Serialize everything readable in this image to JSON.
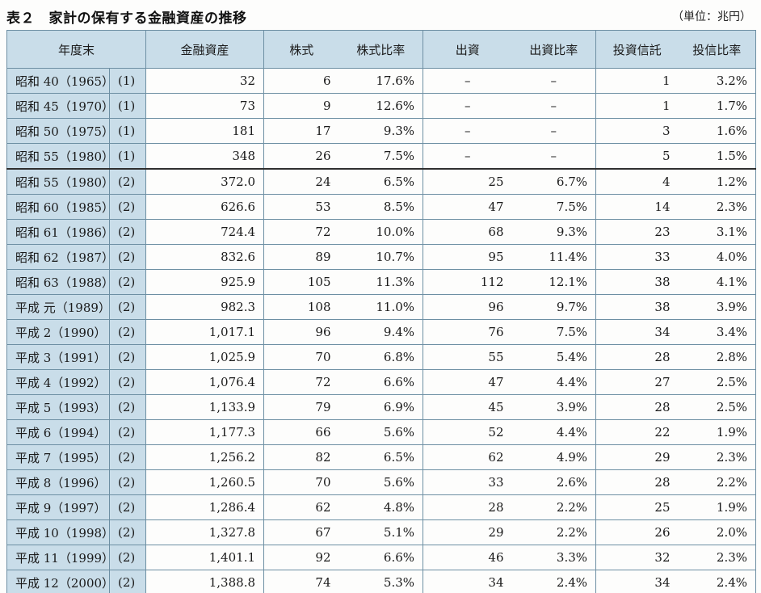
{
  "title": "表２　家計の保有する金融資産の推移",
  "unit": "（単位：兆円）",
  "headers": {
    "year": "年度末",
    "assets": "金融資産",
    "stock": "株式",
    "stock_ratio": "株式比率",
    "investment": "出資",
    "investment_ratio": "出資比率",
    "trust": "投資信託",
    "trust_ratio": "投信比率"
  },
  "rows": [
    {
      "year": "昭和 40（1965）",
      "series": "(1)",
      "assets": "32",
      "stock": "6",
      "stock_ratio": "17.6%",
      "investment": "–",
      "investment_ratio": "–",
      "trust": "1",
      "trust_ratio": "3.2%"
    },
    {
      "year": "昭和 45（1970）",
      "series": "(1)",
      "assets": "73",
      "stock": "9",
      "stock_ratio": "12.6%",
      "investment": "–",
      "investment_ratio": "–",
      "trust": "1",
      "trust_ratio": "1.7%"
    },
    {
      "year": "昭和 50（1975）",
      "series": "(1)",
      "assets": "181",
      "stock": "17",
      "stock_ratio": "9.3%",
      "investment": "–",
      "investment_ratio": "–",
      "trust": "3",
      "trust_ratio": "1.6%"
    },
    {
      "year": "昭和 55（1980）",
      "series": "(1)",
      "assets": "348",
      "stock": "26",
      "stock_ratio": "7.5%",
      "investment": "–",
      "investment_ratio": "–",
      "trust": "5",
      "trust_ratio": "1.5%"
    },
    {
      "year": "昭和 55（1980）",
      "series": "(2)",
      "assets": "372.0",
      "stock": "24",
      "stock_ratio": "6.5%",
      "investment": "25",
      "investment_ratio": "6.7%",
      "trust": "4",
      "trust_ratio": "1.2%"
    },
    {
      "year": "昭和 60（1985）",
      "series": "(2)",
      "assets": "626.6",
      "stock": "53",
      "stock_ratio": "8.5%",
      "investment": "47",
      "investment_ratio": "7.5%",
      "trust": "14",
      "trust_ratio": "2.3%"
    },
    {
      "year": "昭和 61（1986）",
      "series": "(2)",
      "assets": "724.4",
      "stock": "72",
      "stock_ratio": "10.0%",
      "investment": "68",
      "investment_ratio": "9.3%",
      "trust": "23",
      "trust_ratio": "3.1%"
    },
    {
      "year": "昭和 62（1987）",
      "series": "(2)",
      "assets": "832.6",
      "stock": "89",
      "stock_ratio": "10.7%",
      "investment": "95",
      "investment_ratio": "11.4%",
      "trust": "33",
      "trust_ratio": "4.0%"
    },
    {
      "year": "昭和 63（1988）",
      "series": "(2)",
      "assets": "925.9",
      "stock": "105",
      "stock_ratio": "11.3%",
      "investment": "112",
      "investment_ratio": "12.1%",
      "trust": "38",
      "trust_ratio": "4.1%"
    },
    {
      "year": "平成 元（1989）",
      "series": "(2)",
      "assets": "982.3",
      "stock": "108",
      "stock_ratio": "11.0%",
      "investment": "96",
      "investment_ratio": "9.7%",
      "trust": "38",
      "trust_ratio": "3.9%"
    },
    {
      "year": "平成 2（1990）",
      "series": "(2)",
      "assets": "1,017.1",
      "stock": "96",
      "stock_ratio": "9.4%",
      "investment": "76",
      "investment_ratio": "7.5%",
      "trust": "34",
      "trust_ratio": "3.4%"
    },
    {
      "year": "平成 3（1991）",
      "series": "(2)",
      "assets": "1,025.9",
      "stock": "70",
      "stock_ratio": "6.8%",
      "investment": "55",
      "investment_ratio": "5.4%",
      "trust": "28",
      "trust_ratio": "2.8%"
    },
    {
      "year": "平成 4（1992）",
      "series": "(2)",
      "assets": "1,076.4",
      "stock": "72",
      "stock_ratio": "6.6%",
      "investment": "47",
      "investment_ratio": "4.4%",
      "trust": "27",
      "trust_ratio": "2.5%"
    },
    {
      "year": "平成 5（1993）",
      "series": "(2)",
      "assets": "1,133.9",
      "stock": "79",
      "stock_ratio": "6.9%",
      "investment": "45",
      "investment_ratio": "3.9%",
      "trust": "28",
      "trust_ratio": "2.5%"
    },
    {
      "year": "平成 6（1994）",
      "series": "(2)",
      "assets": "1,177.3",
      "stock": "66",
      "stock_ratio": "5.6%",
      "investment": "52",
      "investment_ratio": "4.4%",
      "trust": "22",
      "trust_ratio": "1.9%"
    },
    {
      "year": "平成 7（1995）",
      "series": "(2)",
      "assets": "1,256.2",
      "stock": "82",
      "stock_ratio": "6.5%",
      "investment": "62",
      "investment_ratio": "4.9%",
      "trust": "29",
      "trust_ratio": "2.3%"
    },
    {
      "year": "平成 8（1996）",
      "series": "(2)",
      "assets": "1,260.5",
      "stock": "70",
      "stock_ratio": "5.6%",
      "investment": "33",
      "investment_ratio": "2.6%",
      "trust": "28",
      "trust_ratio": "2.2%"
    },
    {
      "year": "平成 9（1997）",
      "series": "(2)",
      "assets": "1,286.4",
      "stock": "62",
      "stock_ratio": "4.8%",
      "investment": "28",
      "investment_ratio": "2.2%",
      "trust": "25",
      "trust_ratio": "1.9%"
    },
    {
      "year": "平成 10（1998）",
      "series": "(2)",
      "assets": "1,327.8",
      "stock": "67",
      "stock_ratio": "5.1%",
      "investment": "29",
      "investment_ratio": "2.2%",
      "trust": "26",
      "trust_ratio": "2.0%"
    },
    {
      "year": "平成 11（1999）",
      "series": "(2)",
      "assets": "1,401.1",
      "stock": "92",
      "stock_ratio": "6.6%",
      "investment": "46",
      "investment_ratio": "3.3%",
      "trust": "32",
      "trust_ratio": "2.3%"
    },
    {
      "year": "平成 12（2000）",
      "series": "(2)",
      "assets": "1,388.8",
      "stock": "74",
      "stock_ratio": "5.3%",
      "investment": "34",
      "investment_ratio": "2.4%",
      "trust": "34",
      "trust_ratio": "2.4%"
    }
  ]
}
